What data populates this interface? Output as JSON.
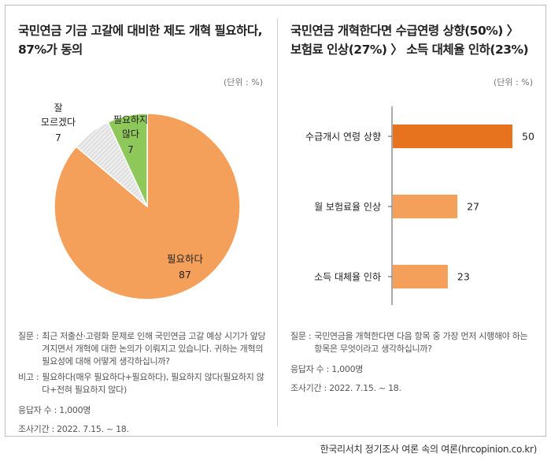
{
  "left": {
    "title_lines": [
      "국민연금 기금 고갈에 대비한 제도 개혁 필요하다,",
      "87%가 동의"
    ],
    "unit": "(단위 : %)",
    "notes": {
      "question_label": "질문 :",
      "question_text": "최근 저출산·고령화 문제로 인해 국민연금 고갈 예상 시기가 앞당겨지면서 개혁에 대한 논의가 이뤄지고 있습니다. 귀하는 개혁의 필요성에 대해 어떻게 생각하십니까?",
      "remark_label": "비고 :",
      "remark_text": "필요하다(매우 필요하다+필요하다), 필요하지 않다(필요하지 않다+전혀 필요하지 않다)",
      "respondents": "응답자 수 : 1,000명",
      "period": "조사기간 : 2022. 7.15. ~ 18."
    }
  },
  "right": {
    "title_lines": [
      "국민연금 개혁한다면 수급연령 상향(50%) 〉",
      "보험료 인상(27%) 〉 소득 대체율 인하(23%)"
    ],
    "unit": "(단위 : %)",
    "notes": {
      "question_label": "질문 :",
      "question_text": "국민연금을 개혁한다면 다음 항목 중 가장 먼저 시행해야 하는 항목은 무엇이라고 생각하십니까?",
      "respondents": "응답자 수 : 1,000명",
      "period": "조사기간 : 2022. 7.15. ~ 18."
    }
  },
  "source": "한국리서치 정기조사 여론 속의 여론(hrcopinion.co.kr)",
  "chart_data": [
    {
      "type": "pie",
      "title": "국민연금 기금 고갈에 대비한 제도 개혁 필요하다, 87%가 동의",
      "unit": "(단위 : %)",
      "slices": [
        {
          "label": "필요하다",
          "value": 87,
          "color": "#f5a05a"
        },
        {
          "label": "잘 모르겠다",
          "value": 7,
          "color": "#e2e2e2"
        },
        {
          "label": "필요하지 않다",
          "value": 7,
          "color": "#8fc85a"
        }
      ]
    },
    {
      "type": "bar",
      "orientation": "horizontal",
      "title": "국민연금 개혁한다면 수급연령 상향(50%) 〉 보험료 인상(27%) 〉 소득 대체율 인하(23%)",
      "unit": "(단위 : %)",
      "categories": [
        "수급개시 연령 상향",
        "월 보험료율 인상",
        "소득 대체율 인하"
      ],
      "values": [
        50,
        27,
        23
      ],
      "colors": [
        "#e8731e",
        "#f5a05a",
        "#f5a05a"
      ],
      "xlim": [
        0,
        50
      ]
    }
  ]
}
